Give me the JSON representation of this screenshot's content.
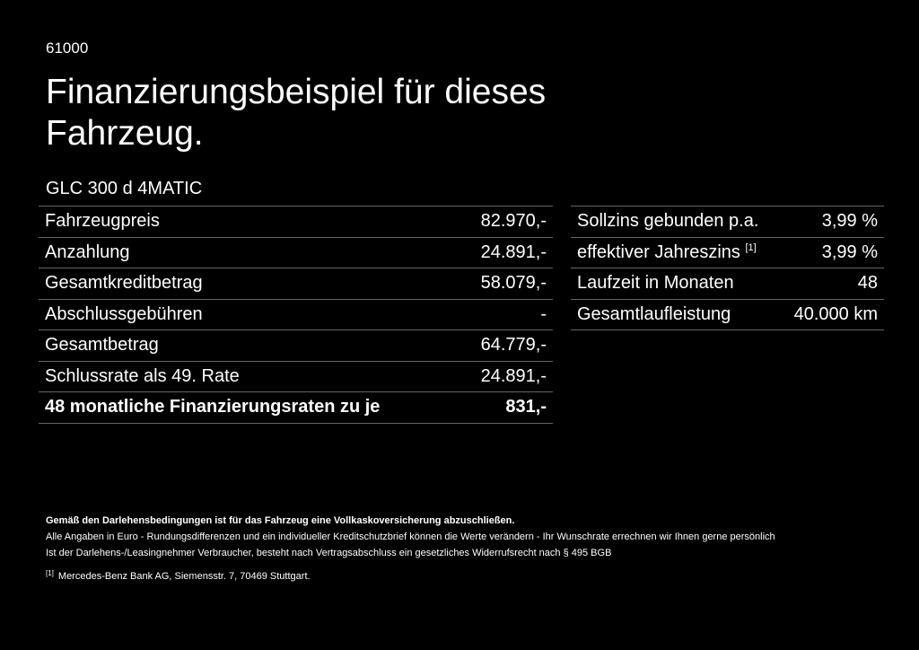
{
  "code": "61000",
  "title": "Finanzierungsbeispiel für dieses Fahrzeug.",
  "model": "GLC 300 d 4MATIC",
  "left_table": [
    {
      "label": "Fahrzeugpreis",
      "value": "82.970,-"
    },
    {
      "label": "Anzahlung",
      "value": "24.891,-"
    },
    {
      "label": "Gesamtkreditbetrag",
      "value": "58.079,-"
    },
    {
      "label": "Abschlussgebühren",
      "value": "-"
    },
    {
      "label": "Gesamtbetrag",
      "value": "64.779,-"
    },
    {
      "label": "Schlussrate als 49. Rate",
      "value": "24.891,-"
    },
    {
      "label": "48 monatliche Finanzierungsraten zu je",
      "value": "831,-"
    }
  ],
  "right_table": [
    {
      "label": "Sollzins gebunden p.a.",
      "value": "3,99 %"
    },
    {
      "label": "effektiver Jahreszins",
      "sup": "[1]",
      "value": "3,99 %"
    },
    {
      "label": "Laufzeit in Monaten",
      "value": "48"
    },
    {
      "label": "Gesamtlaufleistung",
      "value": "40.000 km"
    }
  ],
  "notes": {
    "bold": "Gemäß den Darlehensbedingungen ist für das Fahrzeug eine Vollkaskoversicherung abzuschließen.",
    "line1": "Alle Angaben in Euro - Rundungsdifferenzen und ein individueller Kreditschutzbrief können die Werte verändern - Ihr Wunschrate errechnen wir Ihnen gerne persönlich",
    "line2": "Ist der Darlehens-/Leasingnehmer Verbraucher, besteht nach Vertragsabschluss ein gesetzliches Widerrufsrecht nach § 495 BGB",
    "footnote_mark": "[1]",
    "footnote": "Mercedes-Benz Bank AG, Siemensstr. 7, 70469 Stuttgart."
  }
}
